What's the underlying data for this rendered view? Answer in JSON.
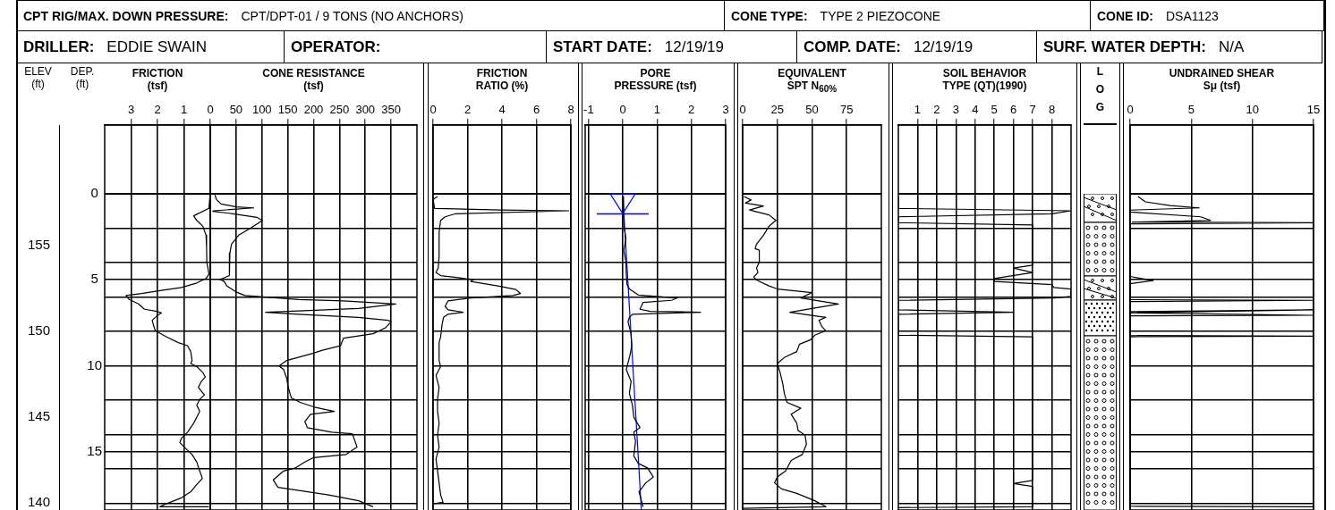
{
  "chart_data": [
    {
      "type": "other",
      "annotations": [
        "CPT RIG/MAX. DOWN PRESSURE:",
        "CPT/DPT-01 / 9 TONS (NO ANCHORS)",
        "CONE TYPE:",
        "TYPE 2 PIEZOCONE",
        "CONE ID:",
        "DSA1123",
        "DRILLER:",
        "EDDIE SWAIN",
        "OPERATOR:",
        "START DATE:",
        "12/19/19",
        "COMP. DATE:",
        "12/19/19",
        "SURF. WATER DEPTH:",
        "N/A"
      ]
    },
    {
      "type": "line",
      "title": "FRICTION",
      "subtitle": "(tsf)",
      "xlim": [
        4,
        0
      ],
      "xticks": [
        3,
        2,
        1,
        0
      ],
      "ylim": [
        18.4,
        -4
      ],
      "yticks": [
        0,
        {
          "value": 2,
          "label": null
        },
        {
          "value": 4,
          "label": null
        },
        5,
        {
          "value": 6,
          "label": null
        },
        {
          "value": 8,
          "label": null
        },
        10,
        {
          "value": 12,
          "label": null
        },
        {
          "value": 14,
          "label": null
        },
        15,
        {
          "value": 16,
          "label": null
        },
        {
          "value": 18,
          "label": null
        }
      ],
      "ylabel": "DEP. (ft)",
      "y2lim": [
        139.6,
        162
      ],
      "y2ticks": [
        155,
        150,
        145,
        140
      ],
      "y2label": "ELEV (ft)",
      "grid": true,
      "ref_lines": [
        {
          "axis": "y",
          "value": 0
        }
      ],
      "series": [
        {
          "color": "#000000",
          "values": [
            0.07,
            0.85,
            1.28,
            1.55,
            1.89,
            2.41,
            3.11,
            3.98,
            4.41,
            4.67,
            4.93,
            5.19,
            5.45,
            5.63,
            5.8,
            5.92,
            6.15,
            6.41,
            6.72,
            6.84,
            6.93,
            7.1,
            7.36,
            7.71,
            7.97,
            8.32,
            8.66,
            8.84,
            9.18,
            9.7,
            9.88,
            10.05,
            10.4,
            10.66,
            10.92,
            11.27,
            11.7,
            11.96,
            12.31,
            12.66,
            13.0,
            13.35,
            13.87,
            14.22,
            14.48,
            14.83,
            15.17,
            15.61,
            16.13,
            16.56,
            16.91,
            17.34,
            17.69,
            18.04,
            18.21,
            18.21
          ],
          "x": [
            0.01,
            0.05,
            0.63,
            0.51,
            0.28,
            0.16,
            0.14,
            0.13,
            0.08,
            0.05,
            0.16,
            0.51,
            1.09,
            1.91,
            2.6,
            3.19,
            3.07,
            2.72,
            2.49,
            2.02,
            1.85,
            2.02,
            2.2,
            2.14,
            2.08,
            1.67,
            1.21,
            0.86,
            0.74,
            0.69,
            0.74,
            0.51,
            0.28,
            0.19,
            0.34,
            0.45,
            0.22,
            0.4,
            0.51,
            0.4,
            0.51,
            0.63,
            0.86,
            1.09,
            1.15,
            0.92,
            0.69,
            0.51,
            0.4,
            0.3,
            0.51,
            0.74,
            1.09,
            1.67,
            1.91,
            0.05
          ]
        }
      ]
    },
    {
      "type": "line",
      "title": "CONE RESISTANCE",
      "subtitle": "(tsf)",
      "xlim": [
        0,
        400
      ],
      "xticks": [
        50,
        100,
        150,
        200,
        250,
        300,
        350
      ],
      "ylim": [
        18.4,
        -4
      ],
      "yticks": [
        0,
        {
          "value": 2,
          "label": null
        },
        {
          "value": 4,
          "label": null
        },
        5,
        {
          "value": 6,
          "label": null
        },
        {
          "value": 8,
          "label": null
        },
        10,
        {
          "value": 12,
          "label": null
        },
        {
          "value": 14,
          "label": null
        },
        15,
        {
          "value": 16,
          "label": null
        },
        {
          "value": 18,
          "label": null
        }
      ],
      "grid": true,
      "tick_labels": "x",
      "ref_lines": [
        {
          "axis": "y",
          "value": 0
        }
      ],
      "series": [
        {
          "color": "#000000",
          "values": [
            0.07,
            0.33,
            0.59,
            0.76,
            0.82,
            0.99,
            1.02,
            1.16,
            1.37,
            1.55,
            1.89,
            2.41,
            2.93,
            3.45,
            4.76,
            4.93,
            4.98,
            5.1,
            5.36,
            5.71,
            5.92,
            6.02,
            6.15,
            6.23,
            6.41,
            6.67,
            6.89,
            7.01,
            7.19,
            7.36,
            7.45,
            7.8,
            8.14,
            8.4,
            8.84,
            9.1,
            9.27,
            9.7,
            10.02,
            10.23,
            10.75,
            11.27,
            11.88,
            12.14,
            12.4,
            12.66,
            12.83,
            13.26,
            13.61,
            13.87,
            13.96,
            14.74,
            15.17,
            15.35,
            15.61,
            15.95,
            16.13,
            16.65,
            17.08,
            17.52,
            17.86,
            18.21
          ],
          "x": [
            9,
            12,
            21,
            50,
            84,
            6,
            5,
            44,
            90,
            101,
            84,
            55,
            41,
            38,
            37,
            24,
            18,
            27,
            32,
            50,
            67,
            113,
            171,
            258,
            359,
            287,
            107,
            171,
            287,
            344,
            350,
            339,
            315,
            258,
            252,
            217,
            200,
            148,
            133,
            142,
            148,
            151,
            157,
            174,
            200,
            240,
            194,
            183,
            188,
            235,
            275,
            284,
            263,
            200,
            183,
            165,
            142,
            122,
            131,
            229,
            287,
            315
          ]
        }
      ]
    },
    {
      "type": "line",
      "title": "FRICTION",
      "subtitle": "RATIO (%)",
      "xlim": [
        0,
        8
      ],
      "xticks": [
        0,
        2,
        4,
        6,
        8
      ],
      "ylim": [
        18.4,
        -4
      ],
      "yticks": [
        0,
        {
          "value": 2,
          "label": null
        },
        {
          "value": 4,
          "label": null
        },
        5,
        {
          "value": 6,
          "label": null
        },
        {
          "value": 8,
          "label": null
        },
        10,
        {
          "value": 12,
          "label": null
        },
        {
          "value": 14,
          "label": null
        },
        15,
        {
          "value": 16,
          "label": null
        },
        {
          "value": 18,
          "label": null
        }
      ],
      "grid": true,
      "tick_labels": "x",
      "ref_lines": [
        {
          "axis": "y",
          "value": 0
        }
      ],
      "series": [
        {
          "color": "#000000",
          "values": [
            0.16,
            0.33,
            0.85,
            0.94,
            0.99,
            1.16,
            1.34,
            1.55,
            2.24,
            3.63,
            4.32,
            4.58,
            4.76,
            4.93,
            4.98,
            5.1,
            5.36,
            5.57,
            5.8,
            5.92,
            6.06,
            6.23,
            6.55,
            6.75,
            6.89,
            7.01,
            7.19,
            7.62,
            8.32,
            8.66,
            9.7,
            10.05,
            10.57,
            11.27,
            11.96,
            12.66,
            13.35,
            14.05,
            14.74,
            15.43,
            16.13,
            16.82,
            17.52,
            17.95,
            18.04
          ],
          "x": [
            0.26,
            0,
            0.09,
            3.94,
            7.87,
            1.31,
            0.7,
            0.44,
            0.35,
            0.35,
            0.3,
            0.17,
            0.44,
            1.84,
            2.36,
            2.19,
            3.76,
            4.81,
            5.07,
            4.64,
            2.19,
            0.87,
            0.7,
            0.87,
            1.75,
            0.87,
            0.61,
            0.52,
            0.44,
            0.35,
            0.35,
            0.44,
            0.17,
            0.35,
            0.26,
            0.26,
            0.35,
            0.26,
            0.35,
            0.17,
            0.26,
            0.35,
            0.44,
            0.58,
            0
          ]
        }
      ]
    },
    {
      "type": "line",
      "title": "PORE",
      "subtitle": "PRESSURE (tsf)",
      "xlim": [
        -1.1,
        3
      ],
      "xticks": [
        -1,
        0,
        1,
        2,
        3
      ],
      "ylim": [
        18.4,
        -4
      ],
      "yticks": [
        0,
        {
          "value": 2,
          "label": null
        },
        {
          "value": 4,
          "label": null
        },
        5,
        {
          "value": 6,
          "label": null
        },
        {
          "value": 8,
          "label": null
        },
        10,
        {
          "value": 12,
          "label": null
        },
        {
          "value": 14,
          "label": null
        },
        15,
        {
          "value": 16,
          "label": null
        },
        {
          "value": 18,
          "label": null
        }
      ],
      "grid": true,
      "tick_labels": "x",
      "ref_lines": [
        {
          "axis": "y",
          "value": 0
        }
      ],
      "series": [
        {
          "color": "#000000",
          "values": [
            0.16,
            1.2,
            1.89,
            2.59,
            3.28,
            3.98,
            4.67,
            5.28,
            5.54,
            5.89,
            6.06,
            6.2,
            6.32,
            6.72,
            6.84,
            6.89,
            7.01,
            7.19,
            7.45,
            8.14,
            8.84,
            9.36,
            10.23,
            10.92,
            11.61,
            12.31,
            13.0,
            13.61,
            13.87,
            14.39,
            15.26,
            15.69,
            15.95,
            16.48,
            16.82,
            17.34,
            18.21
          ],
          "x": [
            0,
            0.02,
            0.03,
            0.09,
            0.03,
            0.09,
            0.1,
            0.12,
            0.19,
            0.45,
            1.59,
            1.42,
            0.59,
            0.5,
            0.8,
            2.27,
            0.28,
            0.19,
            0.15,
            0.24,
            0.26,
            0.21,
            0.1,
            0.24,
            0.19,
            0.28,
            0.32,
            0.5,
            0.32,
            0.37,
            0.32,
            0.45,
            0.72,
            0.89,
            0.67,
            0.47,
            0.59
          ]
        },
        {
          "color": "#0000ff",
          "values": [
            0.16,
            18.4
          ],
          "x": [
            0,
            0.54
          ]
        }
      ]
    },
    {
      "type": "line",
      "title": "EQUIVALENT",
      "subtitle": "SPT N$_{60%}$",
      "xlim": [
        0,
        100
      ],
      "xticks": [
        0,
        25,
        50,
        75
      ],
      "ylim": [
        18.4,
        -4
      ],
      "yticks": [
        0,
        {
          "value": 2,
          "label": null
        },
        {
          "value": 4,
          "label": null
        },
        5,
        {
          "value": 6,
          "label": null
        },
        {
          "value": 8,
          "label": null
        },
        10,
        {
          "value": 12,
          "label": null
        },
        {
          "value": 14,
          "label": null
        },
        15,
        {
          "value": 16,
          "label": null
        },
        {
          "value": 18,
          "label": null
        }
      ],
      "grid": true,
      "tick_labels": "x",
      "ref_lines": [
        {
          "axis": "y",
          "value": 0
        }
      ],
      "series": [
        {
          "color": "#000000",
          "values": [
            0.16,
            0.36,
            0.54,
            0.71,
            0.94,
            1.23,
            1.55,
            1.89,
            2.41,
            2.93,
            3.19,
            3.28,
            3.98,
            4.32,
            4.58,
            4.84,
            5.02,
            5.36,
            5.54,
            5.75,
            6.06,
            6.15,
            6.41,
            6.89,
            7.19,
            7.36,
            7.71,
            7.97,
            8.23,
            8.49,
            8.75,
            9.18,
            9.53,
            9.88,
            10.4,
            11.09,
            11.61,
            12.14,
            12.48,
            12.83,
            13.35,
            13.78,
            14.05,
            14.57,
            15.17,
            15.52,
            16.13,
            16.48,
            16.82,
            17.17,
            17.43,
            17.86,
            18.21,
            18.3
          ],
          "x": [
            1,
            6,
            2,
            15,
            5,
            19,
            24,
            19,
            15,
            10,
            9,
            12,
            12,
            10,
            11,
            8,
            10,
            19,
            25,
            50,
            42,
            49,
            69,
            34,
            60,
            55,
            57,
            60,
            52,
            49,
            41,
            39,
            30,
            25,
            27,
            29,
            30,
            32,
            42,
            35,
            39,
            40,
            45,
            46,
            43,
            35,
            31,
            25,
            23,
            28,
            39,
            52,
            60,
            0
          ]
        }
      ]
    },
    {
      "type": "line",
      "title": "SOIL BEHAVIOR",
      "subtitle": "TYPE (QT)(1990)",
      "xlim": [
        0,
        9
      ],
      "xticks": [
        1,
        2,
        3,
        4,
        5,
        6,
        7,
        8
      ],
      "ylim": [
        18.4,
        -4
      ],
      "yticks": [
        0,
        {
          "value": 2,
          "label": null
        },
        {
          "value": 4,
          "label": null
        },
        5,
        {
          "value": 6,
          "label": null
        },
        {
          "value": 8,
          "label": null
        },
        10,
        {
          "value": 12,
          "label": null
        },
        {
          "value": 14,
          "label": null
        },
        15,
        {
          "value": 16,
          "label": null
        },
        {
          "value": 18,
          "label": null
        }
      ],
      "grid": true,
      "tick_labels": "x",
      "ref_lines": [
        {
          "axis": "y",
          "value": 0
        }
      ],
      "series": [
        {
          "color": "#000000",
          "values": [
            0.16,
            0.85,
            0.99,
            1.16,
            1.34,
            1.68,
            1.81,
            4.15,
            4.32,
            4.58,
            4.93,
            5.1,
            5.28,
            5.45,
            5.54,
            5.97,
            6.06,
            6.2,
            6.75,
            6.89,
            7.01,
            8.23,
            8.32,
            16.68,
            16.86,
            17.03,
            18.21,
            18.26
          ],
          "x": [
            0,
            0,
            9,
            8,
            0,
            0,
            7,
            7,
            6,
            7,
            5,
            5,
            8,
            8.1,
            9,
            9,
            8.1,
            0,
            0,
            6,
            0,
            0,
            7,
            7,
            6,
            7,
            7,
            0
          ]
        }
      ]
    },
    {
      "type": "other",
      "title": "LOG"
    },
    {
      "type": "line",
      "title": "UNDRAINED SHEAR",
      "subtitle": "Sμ (tsf)",
      "xlim": [
        0,
        15
      ],
      "xticks": [
        0,
        5,
        10,
        15
      ],
      "ylim": [
        18.4,
        -4
      ],
      "yticks": [
        0,
        {
          "value": 2,
          "label": null
        },
        {
          "value": 4,
          "label": null
        },
        5,
        {
          "value": 6,
          "label": null
        },
        {
          "value": 8,
          "label": null
        },
        10,
        {
          "value": 12,
          "label": null
        },
        {
          "value": 14,
          "label": null
        },
        15,
        {
          "value": 16,
          "label": null
        },
        {
          "value": 18,
          "label": null
        }
      ],
      "grid": true,
      "tick_labels": "x",
      "ref_lines": [
        {
          "axis": "y",
          "value": 0
        }
      ],
      "series": [
        {
          "color": "#000000",
          "values": [
            0.16,
            0.47,
            0.68,
            0.82,
            0.95,
            1.06,
            1.34,
            1.55,
            1.65,
            1.68,
            1.75,
            4.81,
            5.05,
            5.23,
            6.16,
            6.2,
            6.27,
            6.86,
            6.75,
            6.93,
            7.07,
            7.1,
            8.25,
            8.28,
            8.32,
            18.18,
            18.21
          ],
          "x": [
            0.64,
            1.26,
            3.26,
            5.66,
            0,
            0,
            5.78,
            6.58,
            0.18,
            15,
            0,
            0,
            1.89,
            0,
            0,
            15,
            0,
            0,
            15,
            0,
            15,
            0,
            0,
            15,
            0,
            0,
            15
          ]
        }
      ]
    }
  ]
}
